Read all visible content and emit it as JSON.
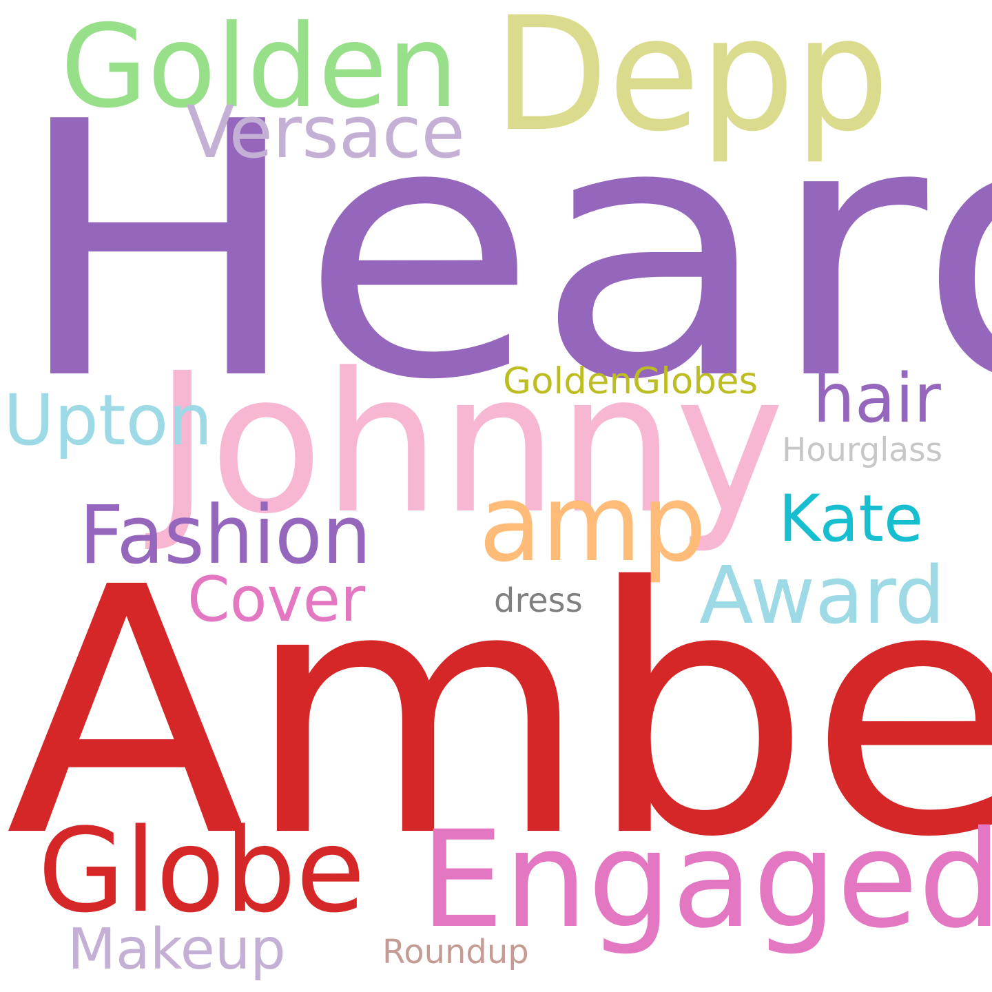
{
  "words": {
    "heard": {
      "text": "Heard",
      "color": "#9467bd"
    },
    "amber": {
      "text": "Amber",
      "color": "#d62728"
    },
    "johnny": {
      "text": "Johnny",
      "color": "#f7b6d2"
    },
    "depp": {
      "text": "Depp",
      "color": "#dbdb8d"
    },
    "golden": {
      "text": "Golden",
      "color": "#98df8a"
    },
    "engaged": {
      "text": "Engaged",
      "color": "#e377c2"
    },
    "globe": {
      "text": "Globe",
      "color": "#d62728"
    },
    "amp": {
      "text": "amp",
      "color": "#ffbb78"
    },
    "versace": {
      "text": "Versace",
      "color": "#c5b0d5"
    },
    "fashion": {
      "text": "Fashion",
      "color": "#9467bd"
    },
    "award": {
      "text": "Award",
      "color": "#9edae5"
    },
    "upton": {
      "text": "Upton",
      "color": "#9edae5"
    },
    "kate": {
      "text": "Kate",
      "color": "#17becf"
    },
    "hair": {
      "text": "hair",
      "color": "#9467bd"
    },
    "cover": {
      "text": "Cover",
      "color": "#e377c2"
    },
    "makeup": {
      "text": "Makeup",
      "color": "#c5b0d5"
    },
    "goldenglobes": {
      "text": "GoldenGlobes",
      "color": "#bcbd22"
    },
    "hourglass": {
      "text": "Hourglass",
      "color": "#c7c7c7"
    },
    "dress": {
      "text": "dress",
      "color": "#7f7f7f"
    },
    "roundup": {
      "text": "Roundup",
      "color": "#c49c94"
    }
  }
}
